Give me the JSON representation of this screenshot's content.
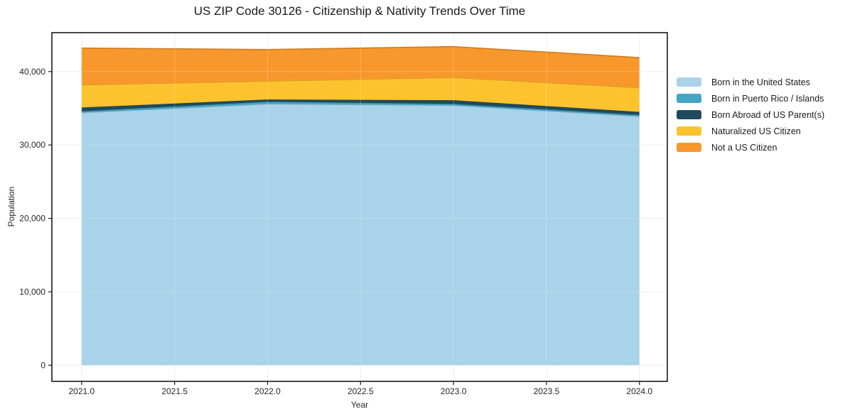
{
  "title": "US ZIP Code 30126 - Citizenship & Nativity Trends Over Time",
  "chart_data": {
    "type": "area",
    "stacked": true,
    "title": "US ZIP Code 30126 - Citizenship & Nativity Trends Over Time",
    "xlabel": "Year",
    "ylabel": "Population",
    "x": [
      2021,
      2022,
      2023,
      2024
    ],
    "series": [
      {
        "name": "Born in the United States",
        "color": "#a8d3e9",
        "values": [
          34400,
          35600,
          35400,
          33900
        ]
      },
      {
        "name": "Born in Puerto Rico / Islands",
        "color": "#44a5c5",
        "values": [
          200,
          300,
          200,
          200
        ]
      },
      {
        "name": "Born Abroad of US Parent(s)",
        "color": "#1f4a5e",
        "values": [
          500,
          300,
          500,
          400
        ]
      },
      {
        "name": "Naturalized US Citizen",
        "color": "#fcc32e",
        "values": [
          3100,
          2500,
          3100,
          3300
        ]
      },
      {
        "name": "Not a US Citizen",
        "color": "#f8982c",
        "values": [
          5000,
          4300,
          4200,
          4100
        ]
      }
    ],
    "totals": [
      43200,
      43000,
      43400,
      41900
    ],
    "x_ticks": [
      2021.0,
      2021.5,
      2022.0,
      2022.5,
      2023.0,
      2023.5,
      2024.0
    ],
    "x_tick_labels": [
      "2021.0",
      "2021.5",
      "2022.0",
      "2022.5",
      "2023.0",
      "2023.5",
      "2024.0"
    ],
    "y_ticks": [
      0,
      10000,
      20000,
      30000,
      40000
    ],
    "y_tick_labels": [
      "0",
      "10,000",
      "20,000",
      "30,000",
      "40,000"
    ],
    "xlim": [
      2020.84,
      2024.15
    ],
    "ylim": [
      -2200,
      45300
    ],
    "grid": true,
    "legend_position": "right",
    "colors": {
      "spine": "#1a1a1a",
      "grid": "#ebebeb",
      "tick_label": "#262626",
      "background": "#ffffff"
    }
  }
}
